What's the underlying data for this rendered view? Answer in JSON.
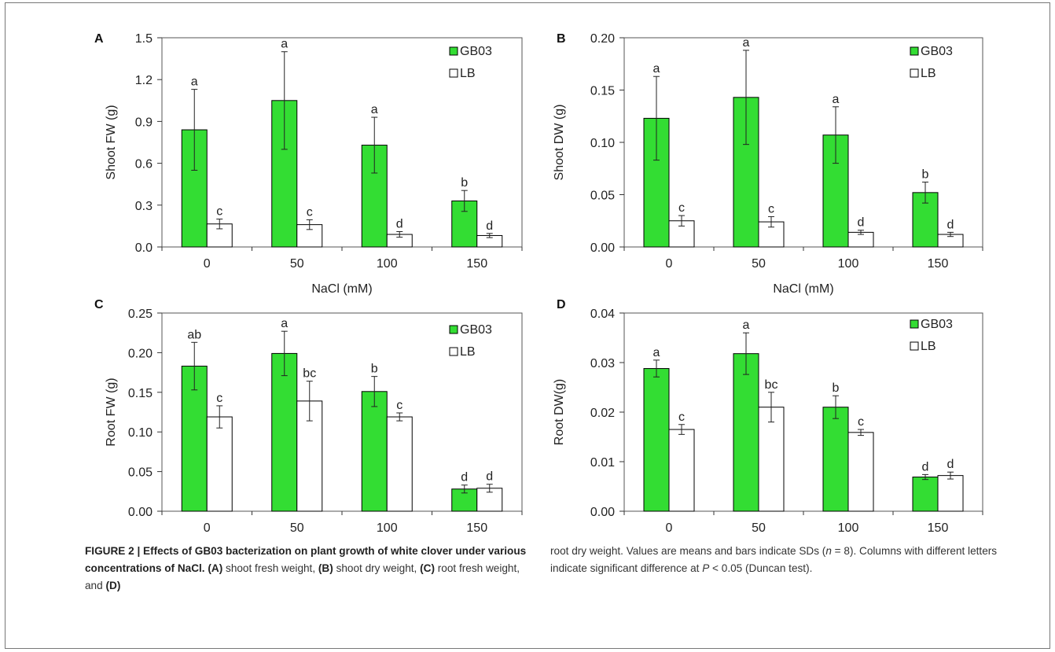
{
  "colors": {
    "green": "#33dd33",
    "white": "#ffffff",
    "stroke": "#000000"
  },
  "chart_data": [
    {
      "panel": "A",
      "type": "bar",
      "categories": [
        "0",
        "50",
        "100",
        "150"
      ],
      "xlabel": "NaCl (mM)",
      "ylabel": "Shoot FW (g)",
      "ylim": [
        0,
        1.5
      ],
      "yticks": [
        "0.0",
        "0.3",
        "0.6",
        "0.9",
        "1.2",
        "1.5"
      ],
      "ydecimals": 1,
      "series": [
        {
          "name": "GB03",
          "values": [
            0.84,
            1.05,
            0.73,
            0.33
          ],
          "errors": [
            0.29,
            0.35,
            0.2,
            0.075
          ],
          "letters": [
            "a",
            "a",
            "a",
            "b"
          ]
        },
        {
          "name": "LB",
          "values": [
            0.165,
            0.16,
            0.09,
            0.082
          ],
          "errors": [
            0.035,
            0.035,
            0.02,
            0.015
          ],
          "letters": [
            "c",
            "c",
            "d",
            "d"
          ]
        }
      ],
      "legend": "top-right"
    },
    {
      "panel": "B",
      "type": "bar",
      "categories": [
        "0",
        "50",
        "100",
        "150"
      ],
      "xlabel": "NaCl (mM)",
      "ylabel": "Shoot DW (g)",
      "ylim": [
        0,
        0.2
      ],
      "yticks": [
        "0.00",
        "0.05",
        "0.10",
        "0.15",
        "0.20"
      ],
      "ydecimals": 2,
      "series": [
        {
          "name": "GB03",
          "values": [
            0.123,
            0.143,
            0.107,
            0.052
          ],
          "errors": [
            0.04,
            0.045,
            0.027,
            0.01
          ],
          "letters": [
            "a",
            "a",
            "a",
            "b"
          ]
        },
        {
          "name": "LB",
          "values": [
            0.025,
            0.024,
            0.014,
            0.012
          ],
          "errors": [
            0.005,
            0.005,
            0.002,
            0.002
          ],
          "letters": [
            "c",
            "c",
            "d",
            "d"
          ]
        }
      ],
      "legend": "top-right"
    },
    {
      "panel": "C",
      "type": "bar",
      "categories": [
        "0",
        "50",
        "100",
        "150"
      ],
      "xlabel": "NaCl (mM)",
      "ylabel": "Root FW (g)",
      "ylim": [
        0,
        0.25
      ],
      "yticks": [
        "0.00",
        "0.05",
        "0.10",
        "0.15",
        "0.20",
        "0.25"
      ],
      "ydecimals": 2,
      "series": [
        {
          "name": "GB03",
          "values": [
            0.183,
            0.199,
            0.151,
            0.028
          ],
          "errors": [
            0.03,
            0.028,
            0.019,
            0.005
          ],
          "letters": [
            "ab",
            "a",
            "b",
            "d"
          ]
        },
        {
          "name": "LB",
          "values": [
            0.119,
            0.139,
            0.119,
            0.029
          ],
          "errors": [
            0.014,
            0.025,
            0.005,
            0.005
          ],
          "letters": [
            "c",
            "bc",
            "c",
            "d"
          ]
        }
      ],
      "legend": "top-right"
    },
    {
      "panel": "D",
      "type": "bar",
      "categories": [
        "0",
        "50",
        "100",
        "150"
      ],
      "xlabel": "NaCl (mM)",
      "ylabel": "Root DW(g)",
      "ylim": [
        0,
        0.04
      ],
      "yticks": [
        "0.00",
        "0.01",
        "0.02",
        "0.03",
        "0.04"
      ],
      "ydecimals": 2,
      "series": [
        {
          "name": "GB03",
          "values": [
            0.0288,
            0.0318,
            0.021,
            0.0069
          ],
          "errors": [
            0.0017,
            0.0042,
            0.0023,
            0.0005
          ],
          "letters": [
            "a",
            "a",
            "b",
            "d"
          ]
        },
        {
          "name": "LB",
          "values": [
            0.0165,
            0.021,
            0.0159,
            0.0072
          ],
          "errors": [
            0.001,
            0.003,
            0.0006,
            0.0007
          ],
          "letters": [
            "c",
            "bc",
            "c",
            "d"
          ]
        }
      ],
      "legend": "top-right"
    }
  ],
  "caption": {
    "label": "FIGURE 2 | Effects of GB03 bacterization on plant growth of white clover under various concentrations of NaCl.",
    "a_tag": "(A)",
    "a_text": "shoot fresh weight,",
    "b_tag": "(B)",
    "b_text": "shoot dry weight,",
    "c_tag": "(C)",
    "c_text": "root fresh weight, and",
    "d_tag": "(D)",
    "d_text": "root dry weight. Values are means and bars indicate SDs (",
    "n_var": "n",
    "n_value": " = 8). Columns with different letters indicate significant difference at ",
    "p_var": "P",
    "p_value": " < 0.05 (Duncan test)."
  }
}
